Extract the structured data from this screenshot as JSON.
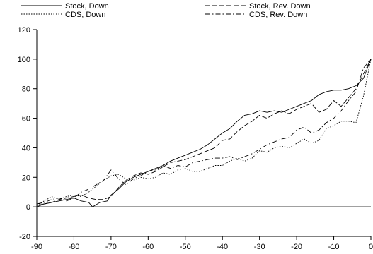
{
  "chart_data": {
    "type": "line",
    "title": "",
    "xlabel": "",
    "ylabel": "",
    "xlim": [
      -90,
      0
    ],
    "ylim": [
      -20,
      120
    ],
    "x_ticks": [
      -90,
      -80,
      -70,
      -60,
      -50,
      -40,
      -30,
      -20,
      -10,
      0
    ],
    "y_ticks": [
      -20,
      0,
      20,
      40,
      60,
      80,
      100,
      120
    ],
    "zero_line": true,
    "grid": false,
    "legend_position": "top",
    "series": [
      {
        "name": "Stock, Down",
        "dash": "solid",
        "points": [
          [
            -90,
            1
          ],
          [
            -88,
            2
          ],
          [
            -86,
            3
          ],
          [
            -84,
            4
          ],
          [
            -82,
            5
          ],
          [
            -80,
            6
          ],
          [
            -78,
            4
          ],
          [
            -76,
            3
          ],
          [
            -75,
            0
          ],
          [
            -73,
            3
          ],
          [
            -71,
            4
          ],
          [
            -70,
            8
          ],
          [
            -68,
            12
          ],
          [
            -66,
            17
          ],
          [
            -64,
            20
          ],
          [
            -62,
            22
          ],
          [
            -60,
            24
          ],
          [
            -58,
            26
          ],
          [
            -56,
            28
          ],
          [
            -54,
            31
          ],
          [
            -52,
            33
          ],
          [
            -50,
            35
          ],
          [
            -48,
            37
          ],
          [
            -46,
            39
          ],
          [
            -44,
            42
          ],
          [
            -42,
            46
          ],
          [
            -40,
            50
          ],
          [
            -38,
            53
          ],
          [
            -36,
            58
          ],
          [
            -34,
            62
          ],
          [
            -32,
            63
          ],
          [
            -30,
            65
          ],
          [
            -28,
            64
          ],
          [
            -26,
            65
          ],
          [
            -24,
            64
          ],
          [
            -22,
            66
          ],
          [
            -20,
            68
          ],
          [
            -18,
            70
          ],
          [
            -16,
            72
          ],
          [
            -14,
            76
          ],
          [
            -12,
            78
          ],
          [
            -10,
            79
          ],
          [
            -8,
            79
          ],
          [
            -6,
            80
          ],
          [
            -4,
            82
          ],
          [
            -2,
            87
          ],
          [
            0,
            100
          ]
        ]
      },
      {
        "name": "Stock, Rev. Down",
        "dash": "dashed",
        "points": [
          [
            -90,
            0
          ],
          [
            -88,
            2
          ],
          [
            -86,
            3
          ],
          [
            -84,
            5
          ],
          [
            -82,
            6
          ],
          [
            -80,
            7
          ],
          [
            -78,
            8
          ],
          [
            -76,
            6
          ],
          [
            -74,
            5
          ],
          [
            -72,
            5
          ],
          [
            -70,
            7
          ],
          [
            -68,
            13
          ],
          [
            -66,
            18
          ],
          [
            -64,
            21
          ],
          [
            -62,
            23
          ],
          [
            -60,
            22
          ],
          [
            -58,
            24
          ],
          [
            -56,
            27
          ],
          [
            -54,
            30
          ],
          [
            -52,
            31
          ],
          [
            -50,
            32
          ],
          [
            -48,
            34
          ],
          [
            -46,
            36
          ],
          [
            -44,
            38
          ],
          [
            -42,
            40
          ],
          [
            -40,
            45
          ],
          [
            -38,
            46
          ],
          [
            -36,
            51
          ],
          [
            -34,
            55
          ],
          [
            -32,
            58
          ],
          [
            -30,
            62
          ],
          [
            -28,
            60
          ],
          [
            -26,
            63
          ],
          [
            -24,
            65
          ],
          [
            -22,
            63
          ],
          [
            -20,
            66
          ],
          [
            -18,
            68
          ],
          [
            -16,
            70
          ],
          [
            -14,
            64
          ],
          [
            -12,
            66
          ],
          [
            -10,
            72
          ],
          [
            -8,
            68
          ],
          [
            -6,
            74
          ],
          [
            -4,
            80
          ],
          [
            -2,
            90
          ],
          [
            0,
            100
          ]
        ]
      },
      {
        "name": "CDS, Down",
        "dash": "dotted",
        "points": [
          [
            -90,
            1
          ],
          [
            -88,
            4
          ],
          [
            -86,
            7
          ],
          [
            -84,
            5
          ],
          [
            -82,
            7
          ],
          [
            -80,
            8
          ],
          [
            -78,
            7
          ],
          [
            -76,
            10
          ],
          [
            -74,
            14
          ],
          [
            -72,
            18
          ],
          [
            -70,
            21
          ],
          [
            -68,
            22
          ],
          [
            -66,
            19
          ],
          [
            -64,
            18
          ],
          [
            -62,
            20
          ],
          [
            -60,
            19
          ],
          [
            -58,
            20
          ],
          [
            -56,
            23
          ],
          [
            -54,
            22
          ],
          [
            -52,
            25
          ],
          [
            -50,
            26
          ],
          [
            -48,
            24
          ],
          [
            -46,
            24
          ],
          [
            -44,
            26
          ],
          [
            -42,
            28
          ],
          [
            -40,
            28
          ],
          [
            -38,
            31
          ],
          [
            -36,
            33
          ],
          [
            -34,
            31
          ],
          [
            -32,
            33
          ],
          [
            -30,
            38
          ],
          [
            -28,
            37
          ],
          [
            -26,
            40
          ],
          [
            -24,
            41
          ],
          [
            -22,
            40
          ],
          [
            -20,
            43
          ],
          [
            -18,
            46
          ],
          [
            -16,
            43
          ],
          [
            -14,
            45
          ],
          [
            -12,
            53
          ],
          [
            -10,
            55
          ],
          [
            -8,
            58
          ],
          [
            -6,
            58
          ],
          [
            -4,
            57
          ],
          [
            -2,
            75
          ],
          [
            0,
            100
          ]
        ]
      },
      {
        "name": "CDS, Rev. Down",
        "dash": "dashdot",
        "points": [
          [
            -90,
            2
          ],
          [
            -88,
            3
          ],
          [
            -86,
            5
          ],
          [
            -84,
            6
          ],
          [
            -82,
            4
          ],
          [
            -80,
            6
          ],
          [
            -78,
            10
          ],
          [
            -76,
            12
          ],
          [
            -74,
            15
          ],
          [
            -72,
            18
          ],
          [
            -70,
            25
          ],
          [
            -68,
            19
          ],
          [
            -66,
            15
          ],
          [
            -64,
            19
          ],
          [
            -62,
            21
          ],
          [
            -60,
            24
          ],
          [
            -58,
            25
          ],
          [
            -56,
            28
          ],
          [
            -54,
            26
          ],
          [
            -52,
            28
          ],
          [
            -50,
            27
          ],
          [
            -48,
            30
          ],
          [
            -46,
            31
          ],
          [
            -44,
            32
          ],
          [
            -42,
            33
          ],
          [
            -40,
            33
          ],
          [
            -38,
            34
          ],
          [
            -36,
            32
          ],
          [
            -34,
            34
          ],
          [
            -32,
            36
          ],
          [
            -30,
            39
          ],
          [
            -28,
            42
          ],
          [
            -26,
            44
          ],
          [
            -24,
            46
          ],
          [
            -22,
            47
          ],
          [
            -20,
            52
          ],
          [
            -18,
            54
          ],
          [
            -16,
            50
          ],
          [
            -14,
            52
          ],
          [
            -12,
            57
          ],
          [
            -10,
            60
          ],
          [
            -8,
            65
          ],
          [
            -6,
            72
          ],
          [
            -4,
            78
          ],
          [
            -2,
            94
          ],
          [
            0,
            100
          ]
        ]
      }
    ]
  }
}
